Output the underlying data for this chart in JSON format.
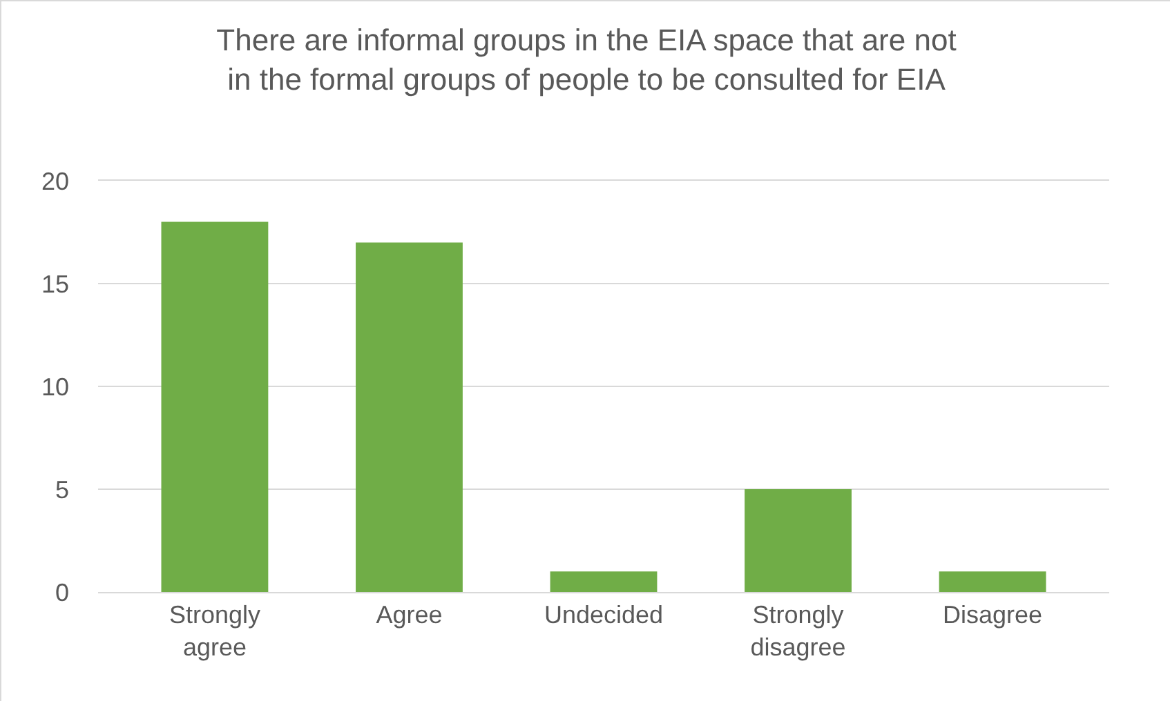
{
  "chart_data": {
    "type": "bar",
    "title": "There are informal groups in the EIA space that are not in the formal groups of people to be consulted for EIA",
    "categories": [
      "Strongly agree",
      "Agree",
      "Undecided",
      "Strongly disagree",
      "Disagree"
    ],
    "values": [
      18,
      17,
      1,
      5,
      1
    ],
    "color": "#70ad47",
    "ylim": [
      0,
      20
    ],
    "yticks": [
      0,
      5,
      10,
      15,
      20
    ],
    "grid": "y"
  }
}
